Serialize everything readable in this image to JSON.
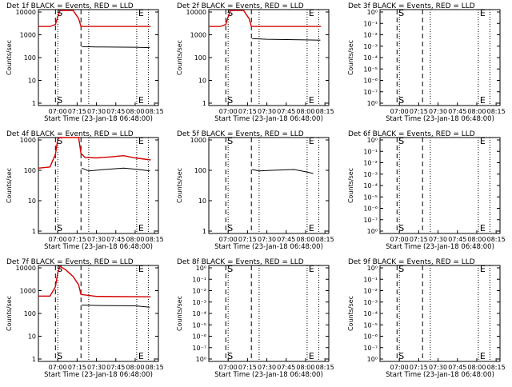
{
  "chart_data": [
    {
      "type": "line",
      "title": "Det 1f BLACK = Events, RED = LLD",
      "xlabel": "Start Time (23-Jan-18 06:48:00)",
      "ylabel": "Counts/sec",
      "xlim": [
        6.75,
        8.3
      ],
      "ylim": [
        1,
        12000
      ],
      "yscale": "log",
      "yticks": [
        "10000",
        "1000",
        "100",
        "10",
        "1"
      ],
      "xticks": [
        "07:00",
        "07:15",
        "07:30",
        "07:45",
        "08:00",
        "08:15"
      ],
      "markers": [
        {
          "label": "S",
          "x": 6.97
        },
        {
          "label": "E",
          "x": 8.02
        }
      ],
      "dashed_lines": [
        6.97,
        7.3
      ],
      "dotted_lines": [
        7.0,
        7.4,
        8.02,
        8.17
      ],
      "series": [
        {
          "name": "LLD",
          "color": "#d40000",
          "x": [
            6.75,
            6.9,
            6.97,
            7.0,
            7.03,
            7.2,
            7.27,
            7.3,
            8.2
          ],
          "y": [
            2300,
            2300,
            2800,
            6000,
            11000,
            11000,
            5000,
            2300,
            2300
          ]
        },
        {
          "name": "Events",
          "color": "#000000",
          "x": [
            7.31,
            7.5,
            8.0,
            8.19
          ],
          "y": [
            320,
            310,
            300,
            290
          ]
        }
      ]
    },
    {
      "type": "line",
      "title": "Det 2f BLACK = Events, RED = LLD",
      "xlabel": "Start Time (23-Jan-18 06:48:00)",
      "ylabel": "Counts/sec",
      "xlim": [
        6.75,
        8.3
      ],
      "ylim": [
        1,
        12000
      ],
      "yscale": "log",
      "yticks": [
        "10000",
        "1000",
        "100",
        "10",
        "1"
      ],
      "xticks": [
        "07:00",
        "07:15",
        "07:30",
        "07:45",
        "08:00",
        "08:15"
      ],
      "markers": [
        {
          "label": "S",
          "x": 6.97
        },
        {
          "label": "E",
          "x": 8.02
        }
      ],
      "dashed_lines": [
        6.97,
        7.3
      ],
      "dotted_lines": [
        7.0,
        7.4,
        8.02,
        8.17
      ],
      "series": [
        {
          "name": "LLD",
          "color": "#d40000",
          "x": [
            6.75,
            6.9,
            6.97,
            7.0,
            7.03,
            7.2,
            7.27,
            7.3,
            8.2
          ],
          "y": [
            2300,
            2300,
            2800,
            6000,
            11000,
            11000,
            5000,
            2300,
            2300
          ]
        },
        {
          "name": "Events",
          "color": "#000000",
          "x": [
            7.31,
            7.5,
            8.0,
            8.19
          ],
          "y": [
            700,
            660,
            620,
            600
          ]
        }
      ]
    },
    {
      "type": "line",
      "title": "Det 3f BLACK = Events, RED = LLD",
      "xlabel": "Start Time (23-Jan-18 06:48:00)",
      "ylabel": "Counts/sec",
      "xlim": [
        6.75,
        8.3
      ],
      "ylim": [
        1,
        10
      ],
      "yscale": "log",
      "yticks": [
        "10⁰",
        "10⁻¹",
        "10⁻²",
        "10⁻³",
        "10⁻⁴",
        "10⁻⁵",
        "10⁻⁶",
        "10⁻⁷",
        "10⁰"
      ],
      "xticks": [
        "07:00",
        "07:15",
        "07:30",
        "07:45",
        "08:00",
        "08:15"
      ],
      "markers": [
        {
          "label": "S",
          "x": 6.97
        },
        {
          "label": "E",
          "x": 8.02
        }
      ],
      "dashed_lines": [
        6.97,
        7.3
      ],
      "dotted_lines": [
        7.0,
        7.4,
        8.02,
        8.17
      ],
      "series": []
    },
    {
      "type": "line",
      "title": "Det 4f BLACK = Events, RED = LLD",
      "xlabel": "Start Time (23-Jan-18 06:48:00)",
      "ylabel": "Counts/sec",
      "xlim": [
        6.75,
        8.3
      ],
      "ylim": [
        1,
        1000
      ],
      "yscale": "log",
      "yticks": [
        "1000",
        "100",
        "10",
        "1"
      ],
      "xticks": [
        "07:00",
        "07:15",
        "07:30",
        "07:45",
        "08:00",
        "08:15"
      ],
      "markers": [
        {
          "label": "S",
          "x": 6.97
        },
        {
          "label": "E",
          "x": 8.02
        }
      ],
      "dashed_lines": [
        6.97,
        7.3
      ],
      "dotted_lines": [
        7.0,
        7.4,
        8.02,
        8.17
      ],
      "series": [
        {
          "name": "LLD",
          "color": "#d40000",
          "x": [
            6.75,
            6.9,
            6.97,
            7.0,
            7.03,
            7.27,
            7.3,
            7.35,
            7.5,
            7.7,
            7.85,
            8.0,
            8.2
          ],
          "y": [
            110,
            120,
            300,
            900,
            1000,
            1000,
            320,
            240,
            230,
            250,
            270,
            230,
            200
          ]
        },
        {
          "name": "Events",
          "color": "#000000",
          "x": [
            7.31,
            7.4,
            7.6,
            7.85,
            8.05,
            8.19
          ],
          "y": [
            110,
            90,
            100,
            110,
            100,
            90
          ]
        }
      ]
    },
    {
      "type": "line",
      "title": "Det 5f BLACK = Events, RED = LLD",
      "xlabel": "Start Time (23-Jan-18 06:48:00)",
      "ylabel": "Counts/sec",
      "xlim": [
        6.75,
        8.3
      ],
      "ylim": [
        1,
        1000
      ],
      "yscale": "log",
      "yticks": [
        "1000",
        "100",
        "10",
        "1"
      ],
      "xticks": [
        "07:00",
        "07:15",
        "07:30",
        "07:45",
        "08:00",
        "08:15"
      ],
      "markers": [
        {
          "label": "S",
          "x": 6.97
        },
        {
          "label": "E",
          "x": 8.02
        }
      ],
      "dashed_lines": [
        6.97,
        7.3
      ],
      "dotted_lines": [
        7.0,
        7.4,
        8.02,
        8.17
      ],
      "series": [
        {
          "name": "Events",
          "color": "#000000",
          "x": [
            7.31,
            7.4,
            7.6,
            7.85,
            8.0,
            8.1
          ],
          "y": [
            100,
            90,
            95,
            100,
            85,
            75
          ]
        }
      ]
    },
    {
      "type": "line",
      "title": "Det 6f BLACK = Events, RED = LLD",
      "xlabel": "Start Time (23-Jan-18 06:48:00)",
      "ylabel": "Counts/sec",
      "xlim": [
        6.75,
        8.3
      ],
      "ylim": [
        1,
        10
      ],
      "yscale": "log",
      "yticks": [
        "10⁰",
        "10⁻¹",
        "10⁻²",
        "10⁻³",
        "10⁻⁴",
        "10⁻⁵",
        "10⁻⁶",
        "10⁻⁷",
        "10⁰"
      ],
      "xticks": [
        "07:00",
        "07:15",
        "07:30",
        "07:45",
        "08:00",
        "08:15"
      ],
      "markers": [
        {
          "label": "S",
          "x": 6.97
        },
        {
          "label": "E",
          "x": 8.02
        }
      ],
      "dashed_lines": [
        6.97,
        7.3
      ],
      "dotted_lines": [
        7.0,
        7.4,
        8.02,
        8.17
      ],
      "series": []
    },
    {
      "type": "line",
      "title": "Det 7f BLACK = Events, RED = LLD",
      "xlabel": "Start Time (23-Jan-18 06:48:00)",
      "ylabel": "Counts/sec",
      "xlim": [
        6.75,
        8.3
      ],
      "ylim": [
        1,
        12000
      ],
      "yscale": "log",
      "yticks": [
        "10000",
        "1000",
        "100",
        "10",
        "1"
      ],
      "xticks": [
        "07:00",
        "07:15",
        "07:30",
        "07:45",
        "08:00",
        "08:15"
      ],
      "markers": [
        {
          "label": "S",
          "x": 6.97
        },
        {
          "label": "E",
          "x": 8.02
        }
      ],
      "dashed_lines": [
        6.97,
        7.3
      ],
      "dotted_lines": [
        7.0,
        7.4,
        8.02,
        8.17
      ],
      "series": [
        {
          "name": "LLD",
          "color": "#d40000",
          "x": [
            6.75,
            6.9,
            6.97,
            7.0,
            7.03,
            7.1,
            7.2,
            7.27,
            7.3,
            7.5,
            8.2
          ],
          "y": [
            600,
            600,
            1500,
            6000,
            11000,
            8000,
            4000,
            1800,
            700,
            580,
            560
          ]
        },
        {
          "name": "Events",
          "color": "#000000",
          "x": [
            7.31,
            7.5,
            8.0,
            8.19
          ],
          "y": [
            250,
            240,
            230,
            200
          ]
        }
      ]
    },
    {
      "type": "line",
      "title": "Det 8f BLACK = Events, RED = LLD",
      "xlabel": "Start Time (23-Jan-18 06:48:00)",
      "ylabel": "Counts/sec",
      "xlim": [
        6.75,
        8.3
      ],
      "ylim": [
        1,
        10
      ],
      "yscale": "log",
      "yticks": [
        "10⁰",
        "10⁻¹",
        "10⁻²",
        "10⁻³",
        "10⁻⁴",
        "10⁻⁵",
        "10⁻⁶",
        "10⁻⁷",
        "10⁰"
      ],
      "xticks": [
        "07:00",
        "07:15",
        "07:30",
        "07:45",
        "08:00",
        "08:15"
      ],
      "markers": [
        {
          "label": "S",
          "x": 6.97
        },
        {
          "label": "E",
          "x": 8.02
        }
      ],
      "dashed_lines": [
        6.97,
        7.3
      ],
      "dotted_lines": [
        7.0,
        7.4,
        8.02,
        8.17
      ],
      "series": []
    },
    {
      "type": "line",
      "title": "Det 9f BLACK = Events, RED = LLD",
      "xlabel": "Start Time (23-Jan-18 06:48:00)",
      "ylabel": "Counts/sec",
      "xlim": [
        6.75,
        8.3
      ],
      "ylim": [
        1,
        10
      ],
      "yscale": "log",
      "yticks": [
        "10⁰",
        "10⁻¹",
        "10⁻²",
        "10⁻³",
        "10⁻⁴",
        "10⁻⁵",
        "10⁻⁶",
        "10⁻⁷",
        "10⁰"
      ],
      "xticks": [
        "07:00",
        "07:15",
        "07:30",
        "07:45",
        "08:00",
        "08:15"
      ],
      "markers": [
        {
          "label": "S",
          "x": 6.97
        },
        {
          "label": "E",
          "x": 8.02
        }
      ],
      "dashed_lines": [
        6.97,
        7.3
      ],
      "dotted_lines": [
        7.0,
        7.4,
        8.02,
        8.17
      ],
      "series": []
    }
  ]
}
